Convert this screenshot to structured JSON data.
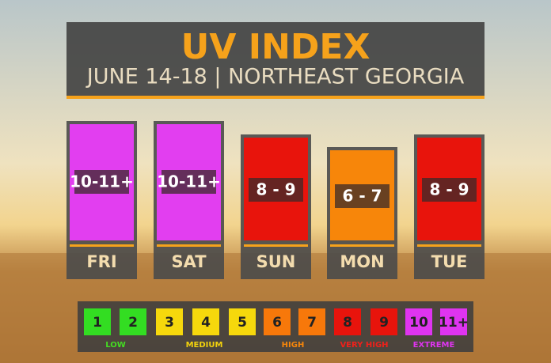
{
  "header": {
    "title": "UV INDEX",
    "subtitle": "JUNE 14-18 | NORTHEAST GEORGIA"
  },
  "days": [
    {
      "day": "FRI",
      "range": "10-11+",
      "color": "#e23ef0"
    },
    {
      "day": "SAT",
      "range": "10-11+",
      "color": "#e23ef0"
    },
    {
      "day": "SUN",
      "range": "8 - 9",
      "color": "#e8140c"
    },
    {
      "day": "MON",
      "range": "6 - 7",
      "color": "#f7860a"
    },
    {
      "day": "TUE",
      "range": "8 - 9",
      "color": "#e8140c"
    }
  ],
  "scale": {
    "levels": [
      {
        "label": "1",
        "color": "#33dd22"
      },
      {
        "label": "2",
        "color": "#33dd22"
      },
      {
        "label": "3",
        "color": "#f6d80c"
      },
      {
        "label": "4",
        "color": "#f6d80c"
      },
      {
        "label": "5",
        "color": "#f6d80c"
      },
      {
        "label": "6",
        "color": "#f7780a"
      },
      {
        "label": "7",
        "color": "#f7780a"
      },
      {
        "label": "8",
        "color": "#e8140c"
      },
      {
        "label": "9",
        "color": "#e8140c"
      },
      {
        "label": "10",
        "color": "#df34f0"
      },
      {
        "label": "11+",
        "color": "#df34f0"
      }
    ],
    "groups": [
      {
        "label": "LOW",
        "color": "#44dd22"
      },
      {
        "label": "MEDIUM",
        "color": "#f3d20c"
      },
      {
        "label": "HIGH",
        "color": "#f7860a"
      },
      {
        "label": "VERY HIGH",
        "color": "#f0201a"
      },
      {
        "label": "EXTREME",
        "color": "#df34f0"
      }
    ]
  }
}
